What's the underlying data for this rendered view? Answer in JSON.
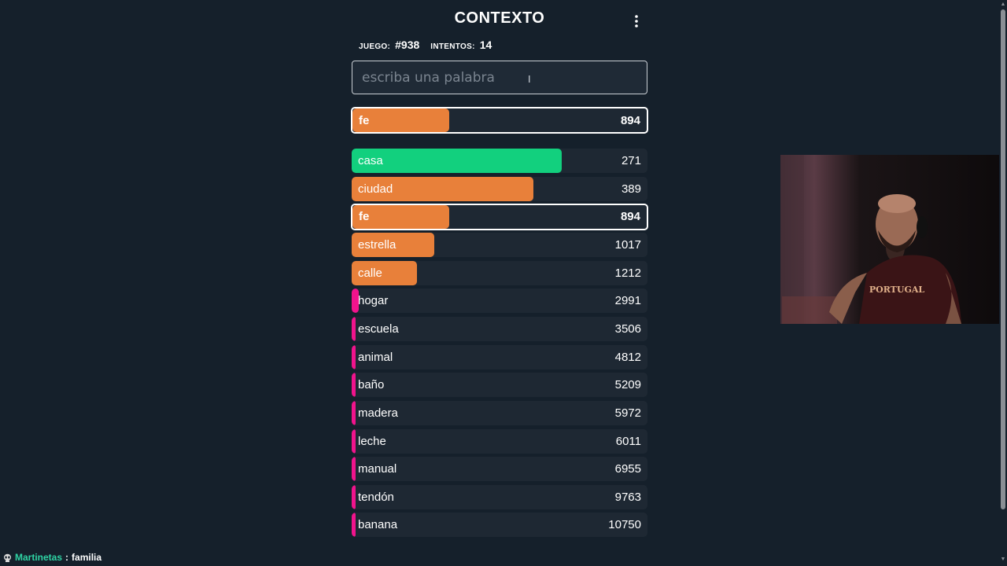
{
  "header": {
    "title": "CONTEXTO"
  },
  "game_info": {
    "game_label": "JUEGO:",
    "game_value": "#938",
    "attempts_label": "INTENTOS:",
    "attempts_value": "14"
  },
  "search": {
    "placeholder": "escriba una palabra",
    "value": ""
  },
  "last_guess": {
    "word": "fe",
    "rank": "894",
    "fill": 0.33,
    "color": "#e8803a"
  },
  "guesses": [
    {
      "word": "casa",
      "rank": "271",
      "fill": 0.71,
      "color": "#12d07e",
      "current": false
    },
    {
      "word": "ciudad",
      "rank": "389",
      "fill": 0.615,
      "color": "#e8803a",
      "current": false
    },
    {
      "word": "fe",
      "rank": "894",
      "fill": 0.33,
      "color": "#e8803a",
      "current": true
    },
    {
      "word": "estrella",
      "rank": "1017",
      "fill": 0.28,
      "color": "#e8803a",
      "current": false
    },
    {
      "word": "calle",
      "rank": "1212",
      "fill": 0.22,
      "color": "#e8803a",
      "current": false
    },
    {
      "word": "hogar",
      "rank": "2991",
      "fill": 0.025,
      "color": "#f0148c",
      "current": false
    },
    {
      "word": "escuela",
      "rank": "3506",
      "fill": 0.012,
      "color": "#f0148c",
      "current": false
    },
    {
      "word": "animal",
      "rank": "4812",
      "fill": 0.012,
      "color": "#f0148c",
      "current": false
    },
    {
      "word": "baño",
      "rank": "5209",
      "fill": 0.012,
      "color": "#f0148c",
      "current": false
    },
    {
      "word": "madera",
      "rank": "5972",
      "fill": 0.012,
      "color": "#f0148c",
      "current": false
    },
    {
      "word": "leche",
      "rank": "6011",
      "fill": 0.012,
      "color": "#f0148c",
      "current": false
    },
    {
      "word": "manual",
      "rank": "6955",
      "fill": 0.012,
      "color": "#f0148c",
      "current": false
    },
    {
      "word": "tendón",
      "rank": "9763",
      "fill": 0.012,
      "color": "#f0148c",
      "current": false
    },
    {
      "word": "banana",
      "rank": "10750",
      "fill": 0.012,
      "color": "#f0148c",
      "current": false
    }
  ],
  "overlay": {
    "chat_user": "Martinetas",
    "chat_separator": ":",
    "chat_message": "familia",
    "webcam_shirt_text": "PORTUGAL"
  }
}
